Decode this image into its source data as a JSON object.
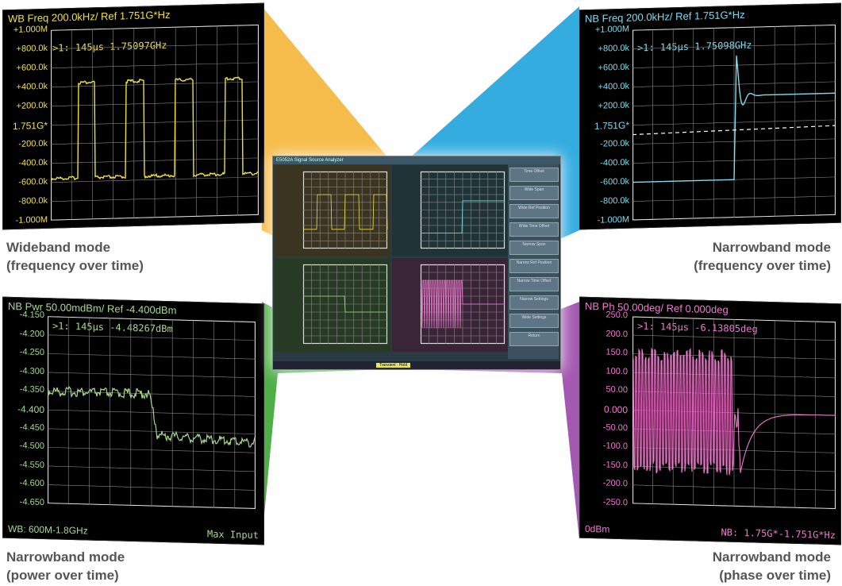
{
  "colors": {
    "yellow": "#f0e040",
    "cyan": "#7fdcf0",
    "green": "#a8d890",
    "magenta": "#f07ad0",
    "fan_yellow": "#f5b537",
    "fan_cyan": "#1ea3dd",
    "fan_green": "#3da535",
    "fan_magenta": "#9a47a8"
  },
  "panels": {
    "wideband": {
      "header": "WB Freq 200.0kHz/ Ref 1.751G*Hz",
      "marker": ">1: 145µs 1.75097GHz",
      "y_labels": [
        "+1.000M",
        "+800.0k",
        "+600.0k",
        "+400.0k",
        "+200.0k",
        "1.751G*",
        "-200.0k",
        "-400.0k",
        "-600.0k",
        "-800.0k",
        "-1.000M"
      ],
      "marker_num": "1"
    },
    "nb_freq": {
      "header": "NB Freq 200.0kHz/ Ref 1.751G*Hz",
      "marker": ">1: 145µs 1.75098GHz",
      "y_labels": [
        "+1.000M",
        "+800.0k",
        "+600.0k",
        "+400.0k",
        "+200.0k",
        "1.751G*",
        "-200.0k",
        "-400.0k",
        "-600.0k",
        "-800.0k",
        "-1.000M"
      ],
      "marker_num": "1"
    },
    "nb_pwr": {
      "header": "NB Pwr 50.00mdBm/ Ref -4.400dBm",
      "marker": ">1: 145µs -4.48267dBm",
      "y_labels": [
        "-4.150",
        "-4.200",
        "-4.250",
        "-4.300",
        "-4.350",
        "-4.400",
        "-4.450",
        "-4.500",
        "-4.550",
        "-4.600",
        "-4.650"
      ],
      "footer_left": "WB: 600M-1.8GHz",
      "footer_right": "Max Input",
      "marker_num": "1"
    },
    "nb_phase": {
      "header": "NB Ph 50.00deg/ Ref 0.000deg",
      "marker": ">1: 145µs -6.13805deg",
      "y_labels": [
        "250.0",
        "200.0",
        "150.0",
        "100.0",
        "50.00",
        "0.000",
        "-50.00",
        "-100.0",
        "-150.0",
        "-200.0",
        "-250.0"
      ],
      "footer_left": "0dBm",
      "footer_right": "NB: 1.75G*-1.751G*Hz",
      "marker_num": "1"
    }
  },
  "captions": {
    "wideband": [
      "Wideband mode",
      "(frequency over time)"
    ],
    "nb_freq": [
      "Narrowband mode",
      "(frequency over time)"
    ],
    "nb_pwr": [
      "Narrowband mode",
      "(power over time)"
    ],
    "nb_phase": [
      "Narrowband mode",
      "(phase over time)"
    ]
  },
  "center": {
    "title": "E5052A Signal Source Analyzer",
    "softkeys": [
      "Time Offset",
      "Wide Span",
      "Wide Ref Position",
      "Wide Time Offset",
      "Narrow Span",
      "Narrow Ref Position",
      "Narrow Time Offset",
      "Narrow Settings",
      "Wide Settings",
      "Return"
    ],
    "status": "Transient : Hold"
  }
}
